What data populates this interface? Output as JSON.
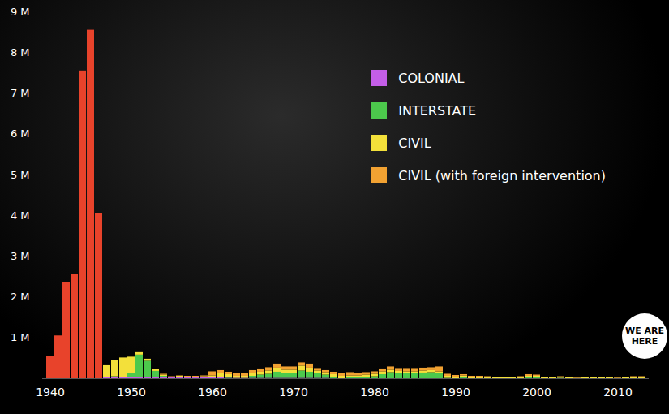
{
  "chart_data": {
    "type": "bar",
    "stacked": true,
    "grid": false,
    "legend": "top-right",
    "annotation": "WE ARE HERE",
    "categories": [
      1940,
      1941,
      1942,
      1943,
      1944,
      1945,
      1946,
      1947,
      1948,
      1949,
      1950,
      1951,
      1952,
      1953,
      1954,
      1955,
      1956,
      1957,
      1958,
      1959,
      1960,
      1961,
      1962,
      1963,
      1964,
      1965,
      1966,
      1967,
      1968,
      1969,
      1970,
      1971,
      1972,
      1973,
      1974,
      1975,
      1976,
      1977,
      1978,
      1979,
      1980,
      1981,
      1982,
      1983,
      1984,
      1985,
      1986,
      1987,
      1988,
      1989,
      1990,
      1991,
      1992,
      1993,
      1994,
      1995,
      1996,
      1997,
      1998,
      1999,
      2000,
      2001,
      2002,
      2003,
      2004,
      2005,
      2006,
      2007,
      2008,
      2009,
      2010,
      2011,
      2012,
      2013
    ],
    "series": [
      {
        "name": null,
        "color": "#e8432b",
        "values": [
          550000,
          1050000,
          2350000,
          2550000,
          7550000,
          8550000,
          4050000,
          0,
          0,
          0,
          0,
          0,
          0,
          0,
          0,
          0,
          0,
          0,
          0,
          0,
          0,
          0,
          0,
          0,
          0,
          0,
          0,
          0,
          0,
          0,
          0,
          0,
          0,
          0,
          0,
          0,
          0,
          0,
          0,
          0,
          0,
          0,
          0,
          0,
          0,
          0,
          0,
          0,
          0,
          0,
          0,
          0,
          0,
          0,
          0,
          0,
          0,
          0,
          0,
          0,
          0,
          0,
          0,
          0,
          0,
          0,
          0,
          0,
          0,
          0,
          0,
          0,
          0,
          0
        ]
      },
      {
        "name": "COLONIAL",
        "color": "#c45ee8",
        "values": [
          0,
          0,
          0,
          0,
          0,
          0,
          0,
          20000,
          30000,
          30000,
          30000,
          30000,
          30000,
          30000,
          30000,
          20000,
          20000,
          20000,
          20000,
          20000,
          20000,
          20000,
          10000,
          10000,
          10000,
          10000,
          10000,
          10000,
          10000,
          10000,
          10000,
          10000,
          10000,
          10000,
          10000,
          0,
          0,
          0,
          0,
          0,
          0,
          0,
          0,
          0,
          0,
          0,
          0,
          0,
          0,
          0,
          0,
          0,
          0,
          0,
          0,
          0,
          0,
          0,
          0,
          0,
          0,
          0,
          0,
          0,
          0,
          0,
          0,
          0,
          0,
          0,
          0,
          0,
          0,
          0
        ]
      },
      {
        "name": "INTERSTATE",
        "color": "#4cc94c",
        "values": [
          0,
          0,
          0,
          0,
          0,
          0,
          0,
          0,
          20000,
          0,
          100000,
          550000,
          400000,
          150000,
          30000,
          0,
          10000,
          0,
          0,
          0,
          0,
          0,
          10000,
          0,
          0,
          50000,
          80000,
          100000,
          150000,
          120000,
          120000,
          180000,
          150000,
          120000,
          80000,
          40000,
          0,
          20000,
          20000,
          30000,
          50000,
          100000,
          150000,
          120000,
          120000,
          120000,
          140000,
          150000,
          120000,
          10000,
          0,
          30000,
          0,
          0,
          0,
          0,
          0,
          0,
          0,
          40000,
          40000,
          0,
          0,
          10000,
          0,
          0,
          0,
          0,
          0,
          0,
          0,
          0,
          0,
          0
        ]
      },
      {
        "name": "CIVIL",
        "color": "#f3e03a",
        "values": [
          0,
          0,
          0,
          0,
          0,
          0,
          0,
          300000,
          400000,
          480000,
          400000,
          60000,
          50000,
          40000,
          30000,
          20000,
          30000,
          20000,
          20000,
          30000,
          50000,
          100000,
          80000,
          50000,
          50000,
          60000,
          70000,
          80000,
          100000,
          80000,
          80000,
          120000,
          100000,
          60000,
          60000,
          60000,
          60000,
          50000,
          50000,
          60000,
          60000,
          70000,
          60000,
          60000,
          50000,
          50000,
          50000,
          50000,
          50000,
          50000,
          40000,
          40000,
          30000,
          30000,
          20000,
          20000,
          20000,
          20000,
          20000,
          20000,
          20000,
          20000,
          20000,
          20000,
          20000,
          10000,
          20000,
          20000,
          20000,
          20000,
          10000,
          20000,
          20000,
          20000
        ]
      },
      {
        "name": "CIVIL (with foreign intervention)",
        "color": "#f2a232",
        "values": [
          0,
          0,
          0,
          0,
          0,
          0,
          0,
          0,
          0,
          0,
          0,
          0,
          0,
          0,
          20000,
          10000,
          10000,
          20000,
          20000,
          20000,
          100000,
          80000,
          60000,
          60000,
          70000,
          80000,
          80000,
          80000,
          100000,
          80000,
          80000,
          80000,
          100000,
          60000,
          50000,
          60000,
          70000,
          80000,
          70000,
          60000,
          60000,
          70000,
          80000,
          70000,
          80000,
          80000,
          70000,
          70000,
          120000,
          50000,
          40000,
          30000,
          30000,
          30000,
          30000,
          20000,
          20000,
          20000,
          30000,
          40000,
          30000,
          20000,
          20000,
          20000,
          20000,
          20000,
          20000,
          20000,
          20000,
          20000,
          20000,
          20000,
          30000,
          30000
        ]
      }
    ],
    "ylim": [
      0,
      9000000
    ],
    "yticks": [
      {
        "value": 1000000,
        "label": "1 M"
      },
      {
        "value": 2000000,
        "label": "2 M"
      },
      {
        "value": 3000000,
        "label": "3 M"
      },
      {
        "value": 4000000,
        "label": "4 M"
      },
      {
        "value": 5000000,
        "label": "5 M"
      },
      {
        "value": 6000000,
        "label": "6 M"
      },
      {
        "value": 7000000,
        "label": "7 M"
      },
      {
        "value": 8000000,
        "label": "8 M"
      },
      {
        "value": 9000000,
        "label": "9 M"
      }
    ],
    "xticks": [
      1940,
      1950,
      1960,
      1970,
      1980,
      1990,
      2000,
      2010
    ]
  }
}
